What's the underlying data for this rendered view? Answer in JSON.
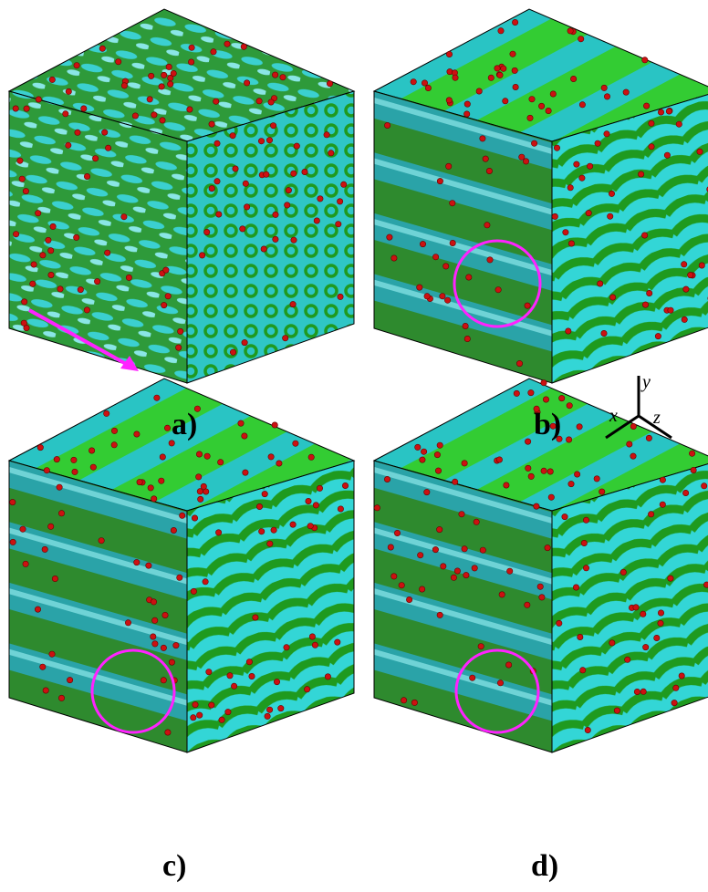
{
  "panels": [
    {
      "label": "a)"
    },
    {
      "label": "b)"
    },
    {
      "label": "c)"
    },
    {
      "label": "d)"
    }
  ],
  "axes": {
    "x": "x",
    "y": "y",
    "z": "z"
  }
}
